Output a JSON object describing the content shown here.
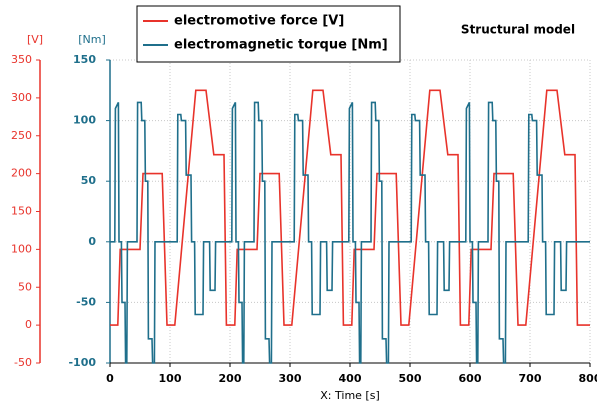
{
  "chart_data": {
    "type": "line",
    "title": "Structural model",
    "xlabel": "X: Time [s]",
    "ylabel": "[Nm]",
    "y2label": "[V]",
    "xlim": [
      0,
      800
    ],
    "xticks": [
      0,
      100,
      200,
      300,
      400,
      500,
      600,
      700,
      800
    ],
    "ylim": [
      -100,
      150
    ],
    "yticks": [
      -100,
      -50,
      0,
      50,
      100,
      150
    ],
    "y2lim": [
      -50,
      350
    ],
    "y2ticks": [
      -50,
      0,
      50,
      100,
      150,
      200,
      250,
      300,
      350
    ],
    "grid": true,
    "legend": "top",
    "series": [
      {
        "name": "electromotive force [V]",
        "color": "#e8332b",
        "axis": "y2",
        "x": [
          0,
          13,
          17,
          50,
          55,
          87,
          95,
          108,
          143,
          160,
          173,
          190,
          194,
          208,
          212,
          245,
          250,
          282,
          290,
          303,
          338,
          355,
          368,
          385,
          389,
          403,
          407,
          440,
          445,
          477,
          485,
          498,
          533,
          550,
          563,
          580,
          584,
          598,
          602,
          635,
          640,
          672,
          680,
          693,
          728,
          745,
          758,
          775,
          779,
          800
        ],
        "values": [
          0,
          0,
          100,
          100,
          200,
          200,
          0,
          0,
          310,
          310,
          225,
          225,
          0,
          0,
          100,
          100,
          200,
          200,
          0,
          0,
          310,
          310,
          225,
          225,
          0,
          0,
          100,
          100,
          200,
          200,
          0,
          0,
          310,
          310,
          225,
          225,
          0,
          0,
          100,
          100,
          200,
          200,
          0,
          0,
          310,
          310,
          225,
          225,
          0,
          0
        ]
      },
      {
        "name": "electromagnetic torque [Nm]",
        "color": "#1f6f8b",
        "x": [
          0,
          8,
          9,
          14,
          15,
          19,
          20,
          25,
          26,
          28,
          29,
          45,
          46,
          52,
          53,
          58,
          59,
          63,
          64,
          70,
          71,
          74,
          75,
          112,
          113,
          118,
          119,
          126,
          127,
          135,
          136,
          141,
          142,
          155,
          156,
          166,
          167,
          175,
          176,
          203,
          204,
          209,
          210,
          214,
          215,
          220,
          221,
          223,
          224,
          240,
          241,
          247,
          248,
          253,
          254,
          258,
          259,
          265,
          266,
          269,
          270,
          307,
          308,
          313,
          314,
          321,
          322,
          330,
          331,
          336,
          337,
          350,
          351,
          361,
          362,
          370,
          371,
          398,
          399,
          404,
          405,
          409,
          410,
          415,
          416,
          418,
          419,
          435,
          436,
          442,
          443,
          448,
          449,
          453,
          454,
          460,
          461,
          464,
          465,
          502,
          503,
          508,
          509,
          516,
          517,
          525,
          526,
          531,
          532,
          545,
          546,
          556,
          557,
          565,
          566,
          593,
          594,
          599,
          600,
          604,
          605,
          610,
          611,
          613,
          614,
          630,
          631,
          637,
          638,
          643,
          644,
          648,
          649,
          655,
          656,
          659,
          660,
          697,
          698,
          703,
          704,
          711,
          712,
          720,
          721,
          726,
          727,
          740,
          741,
          751,
          752,
          760,
          761,
          800
        ],
        "values": [
          0,
          0,
          110,
          115,
          0,
          0,
          -50,
          -50,
          -100,
          -100,
          0,
          0,
          115,
          115,
          100,
          100,
          50,
          50,
          -80,
          -80,
          -100,
          -100,
          0,
          0,
          105,
          105,
          100,
          100,
          55,
          55,
          0,
          0,
          -60,
          -60,
          0,
          0,
          -40,
          -40,
          0,
          0,
          110,
          115,
          0,
          0,
          -50,
          -50,
          -100,
          -100,
          0,
          0,
          115,
          115,
          100,
          100,
          50,
          50,
          -80,
          -80,
          -100,
          -100,
          0,
          0,
          105,
          105,
          100,
          100,
          55,
          55,
          0,
          0,
          -60,
          -60,
          0,
          0,
          -40,
          -40,
          0,
          0,
          110,
          115,
          0,
          0,
          -50,
          -50,
          -100,
          -100,
          0,
          0,
          115,
          115,
          100,
          100,
          50,
          50,
          -80,
          -80,
          -100,
          -100,
          0,
          0,
          105,
          105,
          100,
          100,
          55,
          55,
          0,
          0,
          -60,
          -60,
          0,
          0,
          -40,
          -40,
          0,
          0,
          110,
          115,
          0,
          0,
          -50,
          -50,
          -100,
          -100,
          0,
          0,
          115,
          115,
          100,
          100,
          50,
          50,
          -80,
          -80,
          -100,
          -100,
          0,
          0,
          105,
          105,
          100,
          100,
          55,
          55,
          0,
          0,
          -60,
          -60,
          0,
          0,
          -40,
          -40,
          0,
          0
        ]
      }
    ]
  }
}
